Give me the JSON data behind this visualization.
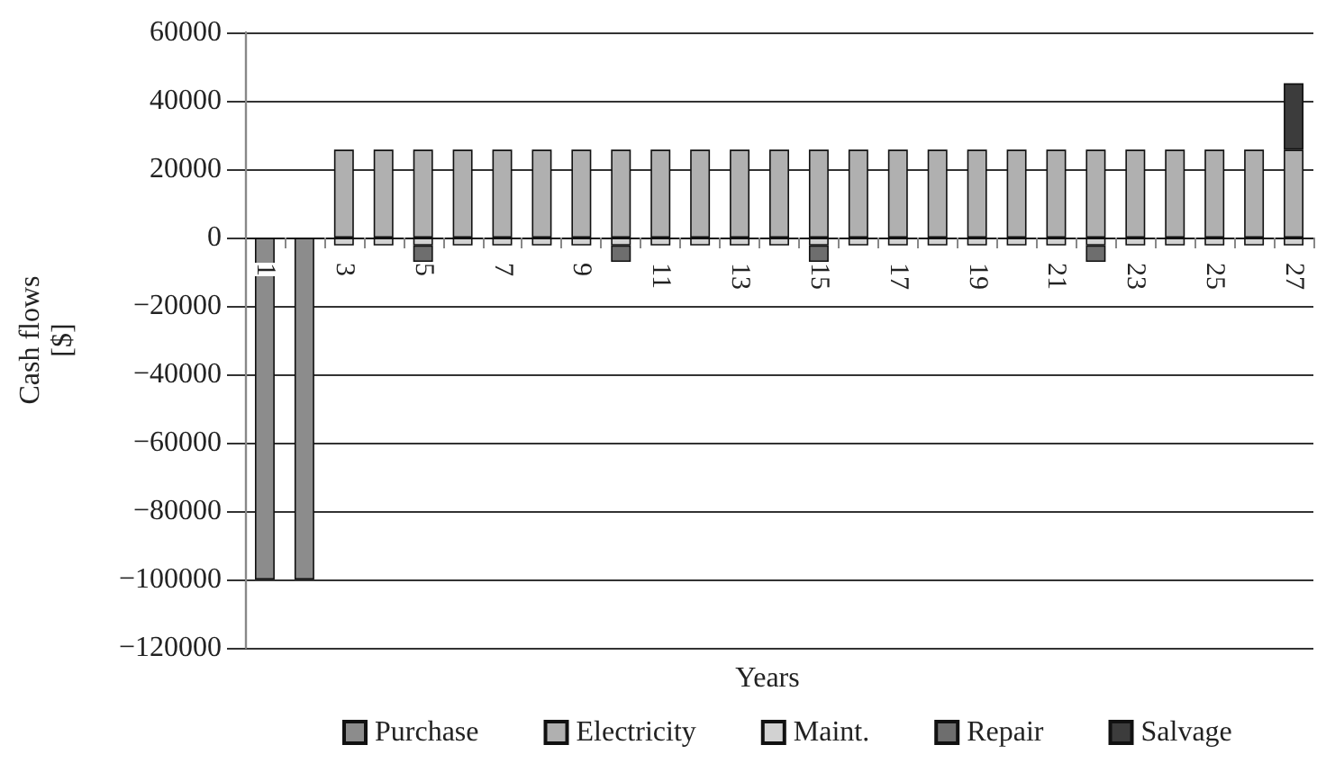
{
  "chart_data": {
    "type": "bar",
    "stacked": true,
    "xlabel": "Years",
    "ylabel": "Cash flows\n[$]",
    "categories": [
      "1",
      null,
      "3",
      null,
      "5",
      null,
      "7",
      null,
      "9",
      null,
      "11",
      null,
      "13",
      null,
      "15",
      null,
      "17",
      null,
      "19",
      null,
      "21",
      null,
      "23",
      null,
      "25",
      null,
      "27"
    ],
    "series": [
      {
        "name": "Purchase",
        "color": "#8c8c8c",
        "values": [
          -100000,
          -100000,
          null,
          null,
          null,
          null,
          null,
          null,
          null,
          null,
          null,
          null,
          null,
          null,
          null,
          null,
          null,
          null,
          null,
          null,
          null,
          null,
          null,
          null,
          null,
          null,
          null
        ]
      },
      {
        "name": "Electricity",
        "color": "#b0b0b0",
        "values": [
          null,
          null,
          25700,
          25700,
          25700,
          25700,
          25700,
          25700,
          25700,
          25700,
          25700,
          25700,
          25700,
          25700,
          25700,
          25700,
          25700,
          25700,
          25700,
          25700,
          25700,
          25700,
          25700,
          25700,
          25700,
          25700,
          25700
        ]
      },
      {
        "name": "Maint.",
        "color": "#d2d2d2",
        "values": [
          null,
          null,
          -2300,
          -2300,
          -2300,
          -2300,
          -2300,
          -2300,
          -2300,
          -2300,
          -2300,
          -2300,
          -2300,
          -2300,
          -2300,
          -2300,
          -2300,
          -2300,
          -2300,
          -2300,
          -2300,
          -2300,
          -2300,
          -2300,
          -2300,
          -2300,
          -2300
        ]
      },
      {
        "name": "Repair",
        "color": "#6e6e6e",
        "values": [
          null,
          null,
          null,
          null,
          -4800,
          null,
          null,
          null,
          null,
          -4800,
          null,
          null,
          null,
          null,
          -4800,
          null,
          null,
          null,
          null,
          null,
          null,
          -4800,
          null,
          null,
          null,
          null,
          null
        ]
      },
      {
        "name": "Salvage",
        "color": "#3c3c3c",
        "values": [
          null,
          null,
          null,
          null,
          null,
          null,
          null,
          null,
          null,
          null,
          null,
          null,
          null,
          null,
          null,
          null,
          null,
          null,
          null,
          null,
          null,
          null,
          null,
          null,
          null,
          null,
          19400
        ]
      }
    ],
    "ylim": [
      -120000,
      60000
    ],
    "yticks": [
      -120000,
      -100000,
      -80000,
      -60000,
      -40000,
      -20000,
      0,
      20000,
      40000,
      60000
    ],
    "grid": "y",
    "legend": "bottom"
  }
}
